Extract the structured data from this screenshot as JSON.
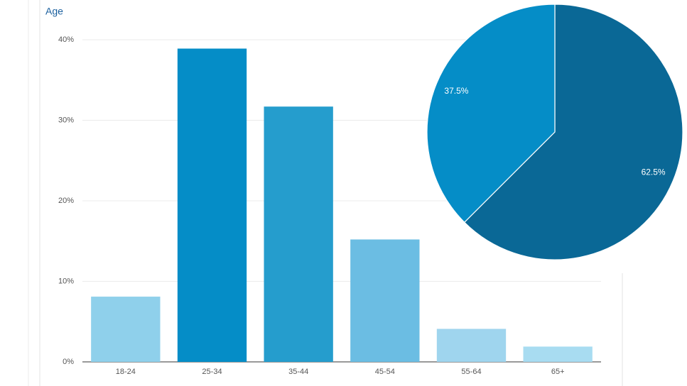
{
  "chart_data": [
    {
      "type": "bar",
      "title": "Age",
      "categories": [
        "18-24",
        "25-34",
        "35-44",
        "45-54",
        "55-64",
        "65+"
      ],
      "values": [
        8.1,
        38.9,
        31.7,
        15.2,
        4.1,
        1.9
      ],
      "colors": [
        "#8fd0eb",
        "#058dc7",
        "#259dcd",
        "#6bbde3",
        "#9fd5ee",
        "#a8dcf1"
      ],
      "ylim": [
        0,
        40
      ],
      "yticks": [
        {
          "value": 0,
          "label": "0%"
        },
        {
          "value": 10,
          "label": "10%"
        },
        {
          "value": 20,
          "label": "20%"
        },
        {
          "value": 30,
          "label": "30%"
        },
        {
          "value": 40,
          "label": "40%"
        }
      ],
      "grid": true
    },
    {
      "type": "pie",
      "values": [
        62.5,
        37.5
      ],
      "value_labels": [
        "62.5%",
        "37.5%"
      ],
      "colors": [
        "#0a6896",
        "#058dc7"
      ]
    }
  ]
}
